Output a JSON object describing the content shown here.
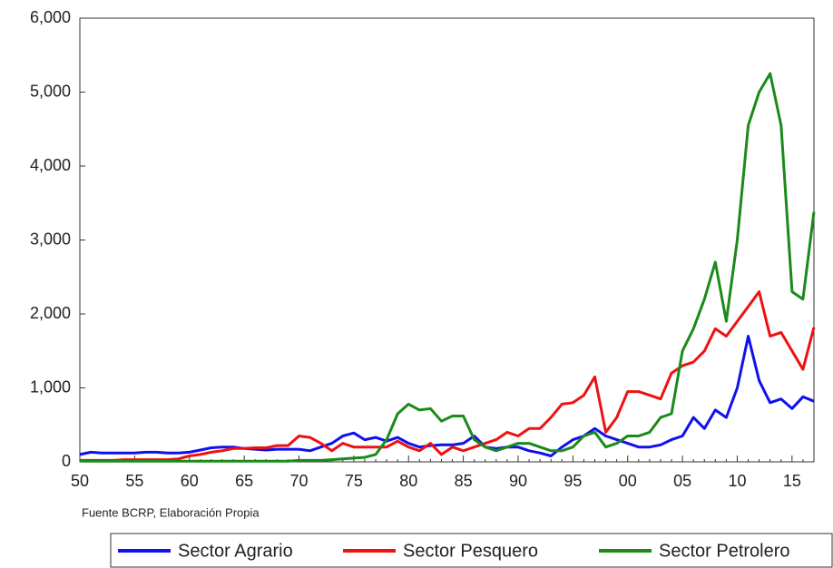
{
  "chart_data": {
    "type": "line",
    "annotation": "Fuente BCRP, Elaboración Propia",
    "categories": [
      "50",
      null,
      null,
      null,
      null,
      "55",
      null,
      null,
      null,
      null,
      "60",
      null,
      null,
      null,
      null,
      "65",
      null,
      null,
      null,
      null,
      "70",
      null,
      null,
      null,
      null,
      "75",
      null,
      null,
      null,
      null,
      "80",
      null,
      null,
      null,
      null,
      "85",
      null,
      null,
      null,
      null,
      "90",
      null,
      null,
      null,
      null,
      "95",
      null,
      null,
      null,
      null,
      "00",
      null,
      null,
      null,
      null,
      "05",
      null,
      null,
      null,
      null,
      "10",
      null,
      null,
      null,
      null,
      "15",
      null,
      null
    ],
    "series": [
      {
        "name": "Sector Agrario",
        "color": "#1010ee",
        "values": [
          100,
          130,
          120,
          120,
          120,
          120,
          130,
          130,
          120,
          120,
          130,
          160,
          190,
          200,
          200,
          180,
          170,
          160,
          170,
          170,
          170,
          150,
          200,
          250,
          350,
          390,
          300,
          330,
          280,
          330,
          250,
          200,
          220,
          230,
          230,
          250,
          350,
          200,
          180,
          200,
          200,
          150,
          120,
          80,
          200,
          300,
          350,
          450,
          350,
          300,
          250,
          200,
          200,
          230,
          300,
          350,
          600,
          450,
          700,
          600,
          1000,
          1700,
          1100,
          800,
          850,
          720,
          880,
          820
        ]
      },
      {
        "name": "Sector Pesquero",
        "color": "#ee1111",
        "values": [
          20,
          20,
          20,
          20,
          30,
          30,
          30,
          30,
          30,
          40,
          80,
          100,
          130,
          150,
          180,
          180,
          190,
          190,
          220,
          220,
          350,
          330,
          250,
          150,
          250,
          200,
          200,
          200,
          200,
          280,
          200,
          150,
          250,
          100,
          200,
          150,
          200,
          250,
          300,
          400,
          350,
          450,
          450,
          600,
          780,
          800,
          900,
          1150,
          400,
          600,
          950,
          950,
          900,
          850,
          1200,
          1300,
          1350,
          1500,
          1800,
          1700,
          1900,
          2100,
          2300,
          1700,
          1750,
          1500,
          1250,
          1820
        ]
      },
      {
        "name": "Sector Petrolero",
        "color": "#1a8a1a",
        "values": [
          10,
          10,
          10,
          10,
          10,
          10,
          10,
          10,
          10,
          10,
          10,
          10,
          10,
          10,
          10,
          10,
          10,
          10,
          10,
          10,
          20,
          20,
          20,
          30,
          40,
          50,
          60,
          100,
          300,
          650,
          780,
          700,
          720,
          550,
          620,
          620,
          300,
          200,
          150,
          200,
          250,
          250,
          200,
          150,
          150,
          200,
          350,
          400,
          200,
          250,
          350,
          350,
          400,
          600,
          650,
          1500,
          1800,
          2200,
          2700,
          1900,
          3000,
          4550,
          5000,
          5250,
          4550,
          2300,
          2200,
          3380
        ]
      }
    ],
    "ylim": [
      0,
      6000
    ],
    "yticks": [
      0,
      {
        "value": 1000,
        "label": "1,000"
      },
      {
        "value": 2000,
        "label": "2,000"
      },
      {
        "value": 3000,
        "label": "3,000"
      },
      {
        "value": 4000,
        "label": "4,000"
      },
      {
        "value": 5000,
        "label": "5,000"
      },
      {
        "value": 6000,
        "label": "6,000"
      }
    ]
  }
}
